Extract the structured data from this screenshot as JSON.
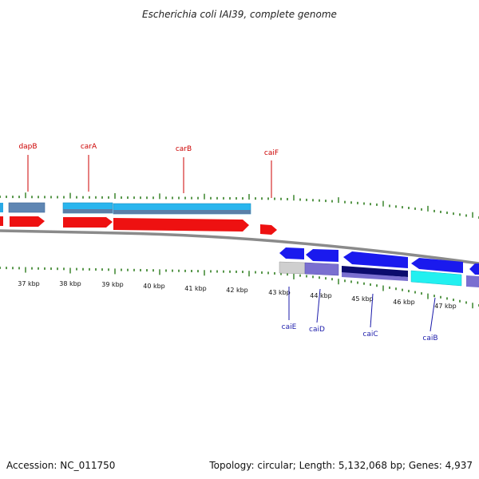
{
  "title": "Escherichia coli IAI39, complete genome",
  "footer": {
    "accession": "Accession: NC_011750",
    "summary": "Topology: circular; Length: 5,132,068 bp; Genes: 4,937"
  },
  "colors": {
    "backbone": "#8a8a8a",
    "tick": "#2e7d1e",
    "forward_cds": "#ee1111",
    "reverse_cds": "#1a1aee",
    "forward_label": "#cc0000",
    "reverse_label": "#1a1aaa"
  },
  "kbp_ticks": [
    {
      "label": "37 kbp"
    },
    {
      "label": "38 kbp"
    },
    {
      "label": "39 kbp"
    },
    {
      "label": "40 kbp"
    },
    {
      "label": "41 kbp"
    },
    {
      "label": "42 kbp"
    },
    {
      "label": "43 kbp"
    },
    {
      "label": "44 kbp"
    },
    {
      "label": "45 kbp"
    },
    {
      "label": "46 kbp"
    },
    {
      "label": "47 kbp"
    }
  ],
  "forward_genes": [
    {
      "label": "dapB"
    },
    {
      "label": "carA"
    },
    {
      "label": "carB"
    },
    {
      "label": "caiF"
    }
  ],
  "reverse_genes": [
    {
      "label": "caiE"
    },
    {
      "label": "caiD"
    },
    {
      "label": "caiC"
    },
    {
      "label": "caiB"
    }
  ]
}
